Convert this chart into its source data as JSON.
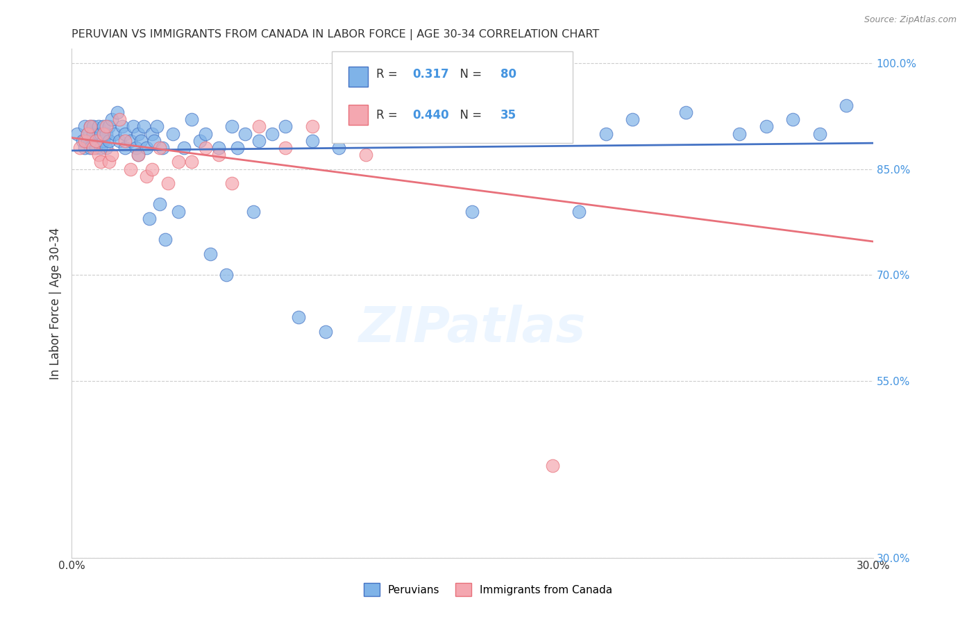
{
  "title": "PERUVIAN VS IMMIGRANTS FROM CANADA IN LABOR FORCE | AGE 30-34 CORRELATION CHART",
  "source": "Source: ZipAtlas.com",
  "xlabel": "",
  "ylabel": "In Labor Force | Age 30-34",
  "xlim": [
    0.0,
    0.3
  ],
  "ylim": [
    0.3,
    1.02
  ],
  "xticks": [
    0.0,
    0.05,
    0.1,
    0.15,
    0.2,
    0.25,
    0.3
  ],
  "xticklabels": [
    "0.0%",
    "",
    "",
    "",
    "",
    "",
    "30.0%"
  ],
  "yticks_right": [
    1.0,
    0.85,
    0.7,
    0.55,
    0.3
  ],
  "ytick_right_labels": [
    "100.0%",
    "85.0%",
    "70.0%",
    "55.0%",
    "30.0%"
  ],
  "blue_R": "0.317",
  "blue_N": "80",
  "pink_R": "0.440",
  "pink_N": "35",
  "legend_label1": "Peruvians",
  "legend_label2": "Immigrants from Canada",
  "blue_color": "#7fb3e8",
  "pink_color": "#f4a7b0",
  "blue_line_color": "#4472c4",
  "pink_line_color": "#e8707a",
  "watermark": "ZIPatlas",
  "blue_points_x": [
    0.002,
    0.004,
    0.005,
    0.005,
    0.006,
    0.006,
    0.007,
    0.007,
    0.008,
    0.008,
    0.009,
    0.009,
    0.01,
    0.01,
    0.011,
    0.011,
    0.012,
    0.012,
    0.013,
    0.013,
    0.014,
    0.014,
    0.015,
    0.016,
    0.017,
    0.018,
    0.019,
    0.02,
    0.02,
    0.022,
    0.023,
    0.024,
    0.025,
    0.025,
    0.026,
    0.027,
    0.028,
    0.029,
    0.03,
    0.031,
    0.032,
    0.033,
    0.034,
    0.035,
    0.038,
    0.04,
    0.042,
    0.045,
    0.048,
    0.05,
    0.052,
    0.055,
    0.058,
    0.06,
    0.062,
    0.065,
    0.068,
    0.07,
    0.075,
    0.08,
    0.085,
    0.09,
    0.095,
    0.1,
    0.11,
    0.12,
    0.13,
    0.14,
    0.15,
    0.16,
    0.175,
    0.19,
    0.2,
    0.21,
    0.23,
    0.25,
    0.26,
    0.27,
    0.28,
    0.29
  ],
  "blue_points_y": [
    0.9,
    0.89,
    0.91,
    0.88,
    0.9,
    0.89,
    0.91,
    0.88,
    0.9,
    0.91,
    0.89,
    0.88,
    0.9,
    0.91,
    0.88,
    0.9,
    0.91,
    0.89,
    0.88,
    0.9,
    0.89,
    0.91,
    0.92,
    0.9,
    0.93,
    0.89,
    0.91,
    0.88,
    0.9,
    0.89,
    0.91,
    0.88,
    0.87,
    0.9,
    0.89,
    0.91,
    0.88,
    0.78,
    0.9,
    0.89,
    0.91,
    0.8,
    0.88,
    0.75,
    0.9,
    0.79,
    0.88,
    0.92,
    0.89,
    0.9,
    0.73,
    0.88,
    0.7,
    0.91,
    0.88,
    0.9,
    0.79,
    0.89,
    0.9,
    0.91,
    0.64,
    0.89,
    0.62,
    0.88,
    0.93,
    0.92,
    0.93,
    0.9,
    0.79,
    0.91,
    0.9,
    0.79,
    0.9,
    0.92,
    0.93,
    0.9,
    0.91,
    0.92,
    0.9,
    0.94
  ],
  "pink_points_x": [
    0.003,
    0.005,
    0.006,
    0.007,
    0.008,
    0.009,
    0.01,
    0.011,
    0.012,
    0.013,
    0.014,
    0.015,
    0.018,
    0.02,
    0.022,
    0.025,
    0.028,
    0.03,
    0.033,
    0.036,
    0.04,
    0.045,
    0.05,
    0.055,
    0.06,
    0.07,
    0.08,
    0.09,
    0.1,
    0.11,
    0.12,
    0.135,
    0.15,
    0.165,
    0.18
  ],
  "pink_points_y": [
    0.88,
    0.89,
    0.9,
    0.91,
    0.88,
    0.89,
    0.87,
    0.86,
    0.9,
    0.91,
    0.86,
    0.87,
    0.92,
    0.89,
    0.85,
    0.87,
    0.84,
    0.85,
    0.88,
    0.83,
    0.86,
    0.86,
    0.88,
    0.87,
    0.83,
    0.91,
    0.88,
    0.91,
    0.9,
    0.87,
    0.92,
    0.91,
    0.92,
    0.93,
    0.43
  ]
}
